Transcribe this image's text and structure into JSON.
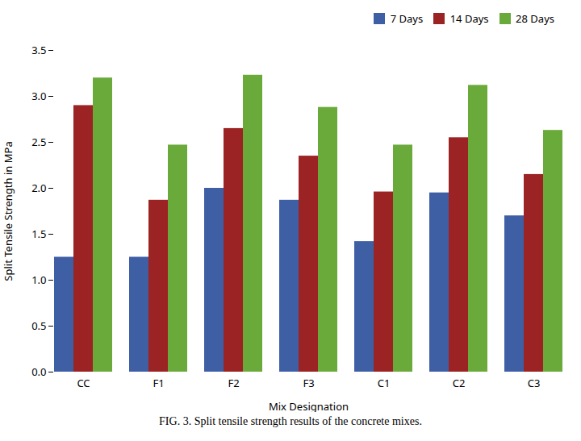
{
  "chart_data": {
    "type": "bar",
    "caption": "FIG. 3. Split tensile strength results of the concrete mixes.",
    "xlabel": "Mix Designation",
    "ylabel": "Split Tensile Strength in MPa",
    "categories": [
      "CC",
      "F1",
      "F2",
      "F3",
      "C1",
      "C2",
      "C3"
    ],
    "series": [
      {
        "name": "7 Days",
        "color": "#3f5fa5",
        "values": [
          1.25,
          1.25,
          2.0,
          1.87,
          1.42,
          1.95,
          1.7
        ]
      },
      {
        "name": "14 Days",
        "color": "#9b2323",
        "values": [
          2.9,
          1.87,
          2.65,
          2.35,
          1.96,
          2.55,
          2.15
        ]
      },
      {
        "name": "28 Days",
        "color": "#6aaa3a",
        "values": [
          3.2,
          2.47,
          3.23,
          2.88,
          2.47,
          3.12,
          2.63
        ]
      }
    ],
    "ylim": [
      0,
      3.5
    ],
    "yticks": [
      0,
      0.5,
      1.0,
      1.5,
      2.0,
      2.5,
      3.0,
      3.5
    ],
    "grid": false,
    "legend": "upper right"
  }
}
